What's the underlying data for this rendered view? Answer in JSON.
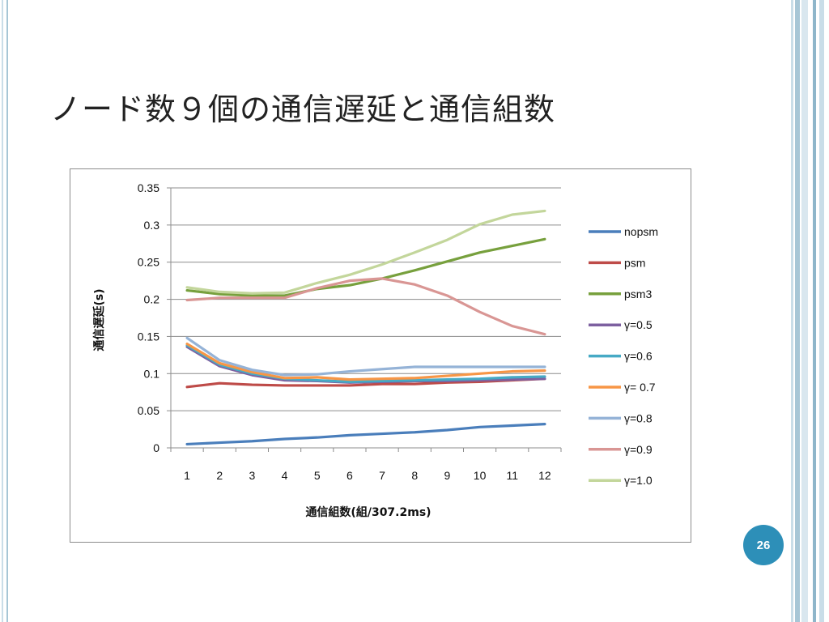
{
  "slide": {
    "title": "ノード数９個の通信遅延と通信組数",
    "page_number": "26"
  },
  "colors": {
    "accent": "#2d8fb8",
    "stripes": [
      "#c9dde8",
      "#a7c6d6",
      "#d9e7ef",
      "#8fb6ca"
    ]
  },
  "chart_data": {
    "type": "line",
    "x": [
      1,
      2,
      3,
      4,
      5,
      6,
      7,
      8,
      9,
      10,
      11,
      12
    ],
    "x_tick_labels": [
      "1",
      "2",
      "3",
      "4",
      "5",
      "6",
      "7",
      "8",
      "9",
      "10",
      "11",
      "12"
    ],
    "xlabel": "通信組数(組/307.2ms)",
    "ylabel": "通信遅延(s)",
    "ylim": [
      0,
      0.35
    ],
    "y_ticks": [
      0,
      0.05,
      0.1,
      0.15,
      0.2,
      0.25,
      0.3,
      0.35
    ],
    "y_tick_labels": [
      "0",
      "0.05",
      "0.1",
      "0.15",
      "0.2",
      "0.25",
      "0.3",
      "0.35"
    ],
    "grid": "horizontal",
    "legend_position": "right",
    "series": [
      {
        "name": "nopsm",
        "color": "#4a7ebb",
        "values": [
          0.005,
          0.007,
          0.009,
          0.012,
          0.014,
          0.017,
          0.019,
          0.021,
          0.024,
          0.028,
          0.03,
          0.032
        ]
      },
      {
        "name": "psm",
        "color": "#be4b48",
        "values": [
          0.082,
          0.087,
          0.085,
          0.084,
          0.084,
          0.084,
          0.086,
          0.086,
          0.088,
          0.089,
          0.091,
          0.093
        ]
      },
      {
        "name": "psm3",
        "color": "#77a03d",
        "values": [
          0.212,
          0.207,
          0.205,
          0.205,
          0.214,
          0.219,
          0.228,
          0.239,
          0.251,
          0.263,
          0.272,
          0.281
        ]
      },
      {
        "name": "γ=0.5",
        "color": "#7d60a0",
        "values": [
          0.136,
          0.11,
          0.098,
          0.091,
          0.09,
          0.088,
          0.089,
          0.09,
          0.09,
          0.091,
          0.092,
          0.093
        ]
      },
      {
        "name": "γ=0.6",
        "color": "#46aac5",
        "values": [
          0.138,
          0.112,
          0.1,
          0.093,
          0.091,
          0.089,
          0.09,
          0.091,
          0.092,
          0.093,
          0.095,
          0.096
        ]
      },
      {
        "name": "γ= 0.7",
        "color": "#f79646",
        "values": [
          0.14,
          0.114,
          0.102,
          0.094,
          0.095,
          0.092,
          0.093,
          0.094,
          0.097,
          0.1,
          0.103,
          0.104
        ]
      },
      {
        "name": "γ=0.8",
        "color": "#95b3d7",
        "values": [
          0.148,
          0.118,
          0.105,
          0.098,
          0.099,
          0.103,
          0.106,
          0.109,
          0.109,
          0.109,
          0.109,
          0.109
        ]
      },
      {
        "name": "γ=0.9",
        "color": "#d99694",
        "values": [
          0.199,
          0.202,
          0.202,
          0.202,
          0.215,
          0.225,
          0.228,
          0.22,
          0.205,
          0.183,
          0.164,
          0.153
        ]
      },
      {
        "name": "γ=1.0",
        "color": "#c3d69b",
        "values": [
          0.216,
          0.21,
          0.208,
          0.209,
          0.222,
          0.233,
          0.247,
          0.263,
          0.28,
          0.301,
          0.314,
          0.319
        ]
      }
    ]
  }
}
